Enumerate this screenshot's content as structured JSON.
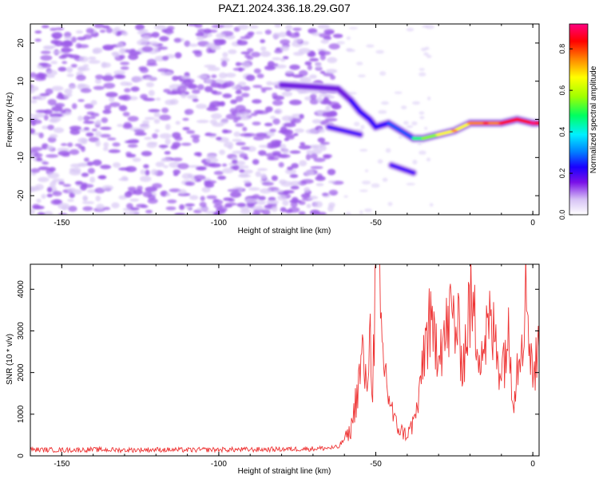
{
  "title": "PAZ1.2024.336.18.29.G07",
  "colorbar": {
    "label": "Normalized spectral amplitude",
    "ticks": [
      "0.0",
      "0.2",
      "0.4",
      "0.6",
      "0.8"
    ]
  },
  "chart_data": [
    {
      "type": "heatmap",
      "xlabel": "Height of straight line (km)",
      "ylabel": "Frequency (Hz)",
      "xlim": [
        -160,
        2
      ],
      "ylim": [
        -25,
        25
      ],
      "xticks": [
        "-150",
        "-100",
        "-50",
        "0"
      ],
      "yticks": [
        "-20",
        "-10",
        "0",
        "10",
        "20"
      ],
      "noise_region": {
        "x_range": [
          -160,
          -62
        ],
        "amplitude_range": [
          0.05,
          0.15
        ]
      },
      "signal_track": {
        "x": [
          -80,
          -70,
          -62,
          -58,
          -55,
          -52,
          -50,
          -46,
          -42,
          -38,
          -35,
          -30,
          -25,
          -20,
          -15,
          -10,
          -5,
          0,
          2
        ],
        "frequency": [
          9,
          8.5,
          8,
          5,
          2,
          0,
          -2,
          -1,
          -3,
          -5,
          -5,
          -4,
          -3,
          -1,
          -1,
          -1,
          0,
          -1,
          -1
        ],
        "amplitude": [
          0.25,
          0.3,
          0.28,
          0.3,
          0.32,
          0.3,
          0.35,
          0.35,
          0.4,
          0.5,
          0.6,
          0.7,
          0.75,
          0.8,
          0.85,
          0.88,
          0.9,
          0.92,
          0.9
        ]
      },
      "secondary_branches": [
        {
          "x": [
            -65,
            -55
          ],
          "frequency": [
            -2,
            -4
          ]
        },
        {
          "x": [
            -45,
            -38
          ],
          "frequency": [
            -12,
            -14
          ]
        }
      ],
      "colorscale": [
        "#ffffff",
        "#d8c8f5",
        "#9b59e8",
        "#6b16e0",
        "#2a00ff",
        "#0050ff",
        "#00e0ff",
        "#00ff80",
        "#80ff00",
        "#ffff00",
        "#ff8000",
        "#ff0000",
        "#ff0080"
      ],
      "grid": false
    },
    {
      "type": "line",
      "xlabel": "Height of straight line (km)",
      "ylabel": "SNR (10 * v/v)",
      "xlim": [
        -160,
        2
      ],
      "ylim": [
        0,
        4600
      ],
      "xticks": [
        "-150",
        "-100",
        "-50",
        "0"
      ],
      "yticks": [
        "0",
        "1000",
        "2000",
        "3000",
        "4000"
      ],
      "color": "#ee3333",
      "series": [
        {
          "x": [
            -160,
            -150,
            -140,
            -130,
            -120,
            -110,
            -100,
            -90,
            -80,
            -70,
            -62,
            -58,
            -56,
            -54,
            -53,
            -52,
            -51,
            -50,
            -49.5,
            -48,
            -46,
            -44,
            -42,
            -40,
            -38,
            -36,
            -35,
            -33,
            -32,
            -30,
            -28,
            -26,
            -24,
            -22,
            -20,
            -18,
            -16,
            -14,
            -12,
            -10,
            -8,
            -6,
            -4,
            -2,
            0,
            1,
            2
          ],
          "y": [
            150,
            140,
            150,
            140,
            150,
            140,
            150,
            150,
            160,
            170,
            200,
            600,
            1500,
            2500,
            1400,
            3100,
            1800,
            4200,
            4600,
            2600,
            1500,
            800,
            600,
            500,
            800,
            1400,
            2400,
            3200,
            2700,
            2900,
            2800,
            3400,
            3000,
            2300,
            3700,
            3000,
            2600,
            3100,
            2800,
            2100,
            2900,
            1500,
            2800,
            3900,
            2000,
            2200,
            2600
          ]
        }
      ],
      "grid": false
    }
  ]
}
